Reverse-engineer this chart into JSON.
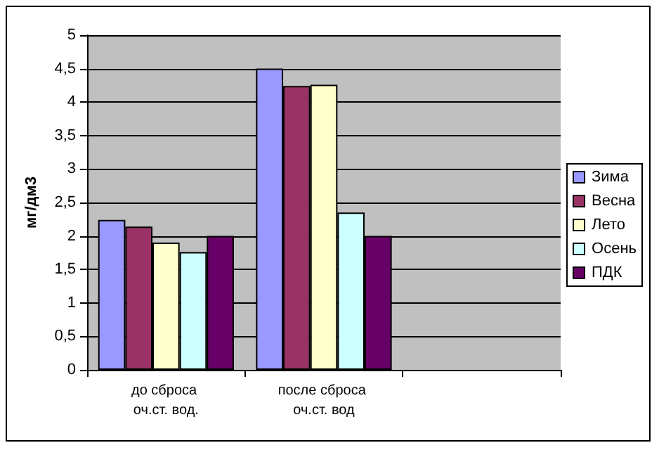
{
  "chart_data": {
    "type": "bar",
    "ylabel": "мг/дм3",
    "categories": [
      "до сброса оч.ст. вод.",
      "после сброса оч.ст. вод",
      null
    ],
    "series": [
      {
        "name": "Зима",
        "color": "#9999ff",
        "values": [
          2.24,
          4.5,
          null
        ]
      },
      {
        "name": "Весна",
        "color": "#993366",
        "values": [
          2.14,
          4.24,
          null
        ]
      },
      {
        "name": "Лето",
        "color": "#ffffcc",
        "values": [
          1.9,
          4.26,
          null
        ]
      },
      {
        "name": "Осень",
        "color": "#ccffff",
        "values": [
          1.76,
          2.35,
          null
        ]
      },
      {
        "name": "ПДК",
        "color": "#660066",
        "values": [
          2,
          2,
          null
        ]
      }
    ],
    "ylim": [
      0,
      5
    ],
    "yticks": [
      0,
      {
        "value": 0.5,
        "label": "0,5"
      },
      1,
      {
        "value": 1.5,
        "label": "1,5"
      },
      2,
      {
        "value": 2.5,
        "label": "2,5"
      },
      3,
      {
        "value": 3.5,
        "label": "3,5"
      },
      4,
      {
        "value": 4.5,
        "label": "4,5"
      },
      5
    ],
    "grid": "y",
    "legend": "right"
  }
}
